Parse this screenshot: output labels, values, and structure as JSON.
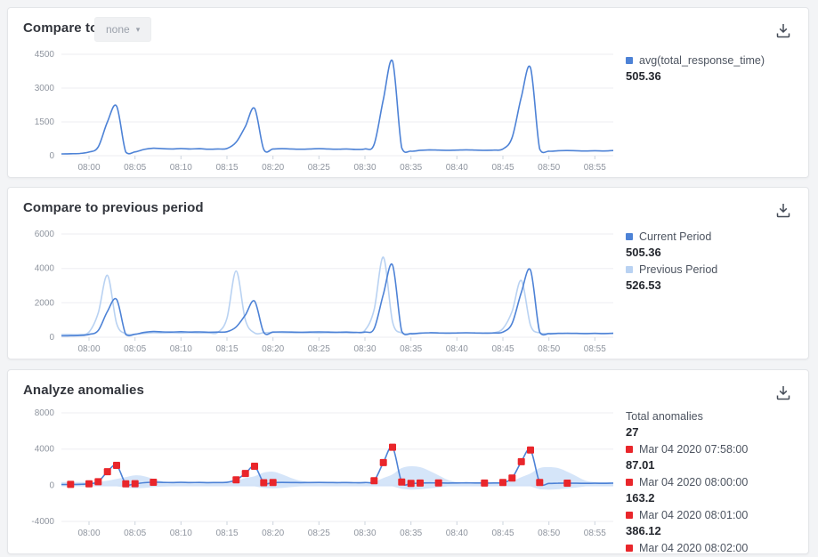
{
  "panels": [
    {
      "title": "Compare to",
      "dropdown_label": "none"
    },
    {
      "title": "Compare to previous period"
    },
    {
      "title": "Analyze anomalies"
    }
  ],
  "colors": {
    "current_line": "#4d82d6",
    "previous_line": "#b9d2f2",
    "band_fill": "#cbdef7",
    "anomaly_red": "#e9262b",
    "grid": "#edeef2",
    "tick_mark": "#ccd4de"
  },
  "chart_data": [
    {
      "type": "line",
      "ylim": [
        0,
        4500
      ],
      "yticks": [
        0,
        1500,
        3000,
        4500
      ],
      "x_total": 60,
      "xtick_minutes": [
        3,
        8,
        13,
        18,
        23,
        28,
        33,
        38,
        43,
        48,
        53,
        58
      ],
      "xtick_labels": [
        "08:00",
        "08:05",
        "08:10",
        "08:15",
        "08:20",
        "08:25",
        "08:30",
        "08:35",
        "08:40",
        "08:45",
        "08:50",
        "08:55"
      ],
      "grid": "horizontal",
      "legend_position": "right",
      "series": [
        {
          "name": "avg(total_response_time)",
          "color": "#4d82d6",
          "width": 1.6,
          "values": [
            80,
            87,
            100,
            163,
            386,
            1500,
            2200,
            160,
            170,
            280,
            330,
            310,
            300,
            320,
            300,
            310,
            290,
            300,
            320,
            600,
            1300,
            2100,
            280,
            300,
            310,
            300,
            290,
            300,
            310,
            300,
            290,
            300,
            280,
            300,
            500,
            2500,
            4200,
            350,
            200,
            240,
            260,
            250,
            240,
            250,
            260,
            250,
            240,
            250,
            300,
            800,
            2600,
            3900,
            300,
            200,
            220,
            230,
            220,
            210,
            220,
            210,
            230
          ]
        }
      ],
      "legend": [
        {
          "swatch": "#4d82d6",
          "label": "avg(total_response_time)",
          "value": "505.36"
        }
      ]
    },
    {
      "type": "line",
      "ylim": [
        0,
        6000
      ],
      "yticks": [
        0,
        2000,
        4000,
        6000
      ],
      "x_total": 60,
      "xtick_minutes": [
        3,
        8,
        13,
        18,
        23,
        28,
        33,
        38,
        43,
        48,
        53,
        58
      ],
      "xtick_labels": [
        "08:00",
        "08:05",
        "08:10",
        "08:15",
        "08:20",
        "08:25",
        "08:30",
        "08:35",
        "08:40",
        "08:45",
        "08:50",
        "08:55"
      ],
      "grid": "horizontal",
      "legend_position": "right",
      "series": [
        {
          "name": "Previous Period",
          "color": "#b9d2f2",
          "width": 1.6,
          "values": [
            150,
            150,
            160,
            300,
            1400,
            3600,
            800,
            200,
            180,
            220,
            260,
            250,
            260,
            250,
            260,
            250,
            260,
            280,
            1100,
            3850,
            1000,
            250,
            260,
            280,
            270,
            260,
            270,
            260,
            250,
            260,
            270,
            260,
            270,
            400,
            1600,
            4650,
            900,
            250,
            220,
            240,
            250,
            240,
            250,
            240,
            250,
            240,
            250,
            260,
            500,
            1500,
            3300,
            700,
            250,
            220,
            230,
            220,
            230,
            220,
            230,
            220,
            230
          ]
        },
        {
          "name": "Current Period",
          "color": "#4d82d6",
          "width": 1.6,
          "values": [
            80,
            87,
            100,
            163,
            386,
            1500,
            2200,
            160,
            170,
            280,
            330,
            310,
            300,
            320,
            300,
            310,
            290,
            300,
            320,
            600,
            1300,
            2100,
            280,
            300,
            310,
            300,
            290,
            300,
            310,
            300,
            290,
            300,
            280,
            300,
            500,
            2500,
            4200,
            350,
            200,
            240,
            260,
            250,
            240,
            250,
            260,
            250,
            240,
            250,
            300,
            800,
            2600,
            3900,
            300,
            200,
            220,
            230,
            220,
            210,
            220,
            210,
            230
          ]
        }
      ],
      "legend": [
        {
          "swatch": "#4d82d6",
          "label": "Current Period",
          "value": "505.36"
        },
        {
          "swatch": "#b9d2f2",
          "label": "Previous Period",
          "value": "526.53"
        }
      ]
    },
    {
      "type": "line",
      "ylim": [
        -4000,
        8000
      ],
      "yticks": [
        -4000,
        0,
        4000,
        8000
      ],
      "x_total": 60,
      "xtick_minutes": [
        3,
        8,
        13,
        18,
        23,
        28,
        33,
        38,
        43,
        48,
        53,
        58
      ],
      "xtick_labels": [
        "08:00",
        "08:05",
        "08:10",
        "08:15",
        "08:20",
        "08:25",
        "08:30",
        "08:35",
        "08:40",
        "08:45",
        "08:50",
        "08:55"
      ],
      "grid": "horizontal",
      "legend_position": "right",
      "band": {
        "fill": "#cbdef7",
        "opacity": 0.8,
        "upper": [
          350,
          350,
          350,
          350,
          350,
          500,
          700,
          900,
          1100,
          1000,
          700,
          450,
          350,
          350,
          350,
          350,
          350,
          350,
          400,
          500,
          800,
          1000,
          1400,
          1500,
          1200,
          800,
          500,
          350,
          350,
          350,
          350,
          350,
          350,
          350,
          400,
          800,
          1200,
          1900,
          2100,
          2000,
          1600,
          1100,
          600,
          350,
          350,
          350,
          350,
          350,
          350,
          450,
          900,
          1300,
          1900,
          2000,
          1900,
          1500,
          1000,
          500,
          350,
          350,
          350
        ],
        "lower": [
          -120,
          -120,
          -120,
          -120,
          -120,
          -120,
          -120,
          -250,
          -350,
          -300,
          -200,
          -150,
          -120,
          -120,
          -120,
          -120,
          -120,
          -120,
          -120,
          -120,
          -120,
          -120,
          -300,
          -350,
          -300,
          -200,
          -120,
          -120,
          -120,
          -120,
          -120,
          -120,
          -120,
          -120,
          -120,
          -120,
          -120,
          -400,
          -500,
          -450,
          -350,
          -250,
          -120,
          -120,
          -120,
          -120,
          -120,
          -120,
          -120,
          -120,
          -120,
          -120,
          -450,
          -500,
          -450,
          -350,
          -250,
          -120,
          -120,
          -120,
          -120
        ]
      },
      "series": [
        {
          "name": "avg(total_response_time)",
          "color": "#4d82d6",
          "width": 1.6,
          "values": [
            80,
            87,
            100,
            163,
            386,
            1500,
            2200,
            160,
            170,
            280,
            330,
            310,
            300,
            320,
            300,
            310,
            290,
            300,
            320,
            600,
            1300,
            2100,
            280,
            300,
            310,
            300,
            290,
            300,
            310,
            300,
            290,
            300,
            280,
            300,
            500,
            2500,
            4200,
            350,
            200,
            240,
            260,
            250,
            240,
            250,
            260,
            250,
            240,
            250,
            300,
            800,
            2600,
            3900,
            300,
            200,
            220,
            230,
            220,
            210,
            220,
            210,
            230
          ]
        }
      ],
      "anomaly_color": "#e9262b",
      "anomalies": [
        [
          1,
          87
        ],
        [
          3,
          163
        ],
        [
          4,
          386
        ],
        [
          5,
          1500
        ],
        [
          6,
          2200
        ],
        [
          7,
          160
        ],
        [
          8,
          170
        ],
        [
          10,
          330
        ],
        [
          19,
          600
        ],
        [
          20,
          1300
        ],
        [
          21,
          2100
        ],
        [
          22,
          280
        ],
        [
          23,
          300
        ],
        [
          34,
          500
        ],
        [
          35,
          2500
        ],
        [
          36,
          4200
        ],
        [
          37,
          350
        ],
        [
          38,
          200
        ],
        [
          39,
          240
        ],
        [
          41,
          250
        ],
        [
          46,
          240
        ],
        [
          48,
          300
        ],
        [
          49,
          800
        ],
        [
          50,
          2600
        ],
        [
          51,
          3900
        ],
        [
          52,
          300
        ],
        [
          55,
          230
        ]
      ],
      "legend": [
        {
          "label": "Total anomalies",
          "value": "27"
        },
        {
          "swatch": "#e9262b",
          "label": "Mar 04 2020 07:58:00",
          "value": "87.01"
        },
        {
          "swatch": "#e9262b",
          "label": "Mar 04 2020 08:00:00",
          "value": "163.2"
        },
        {
          "swatch": "#e9262b",
          "label": "Mar 04 2020 08:01:00",
          "value": "386.12"
        },
        {
          "swatch": "#e9262b",
          "label": "Mar 04 2020 08:02:00",
          "value": null
        }
      ]
    }
  ]
}
